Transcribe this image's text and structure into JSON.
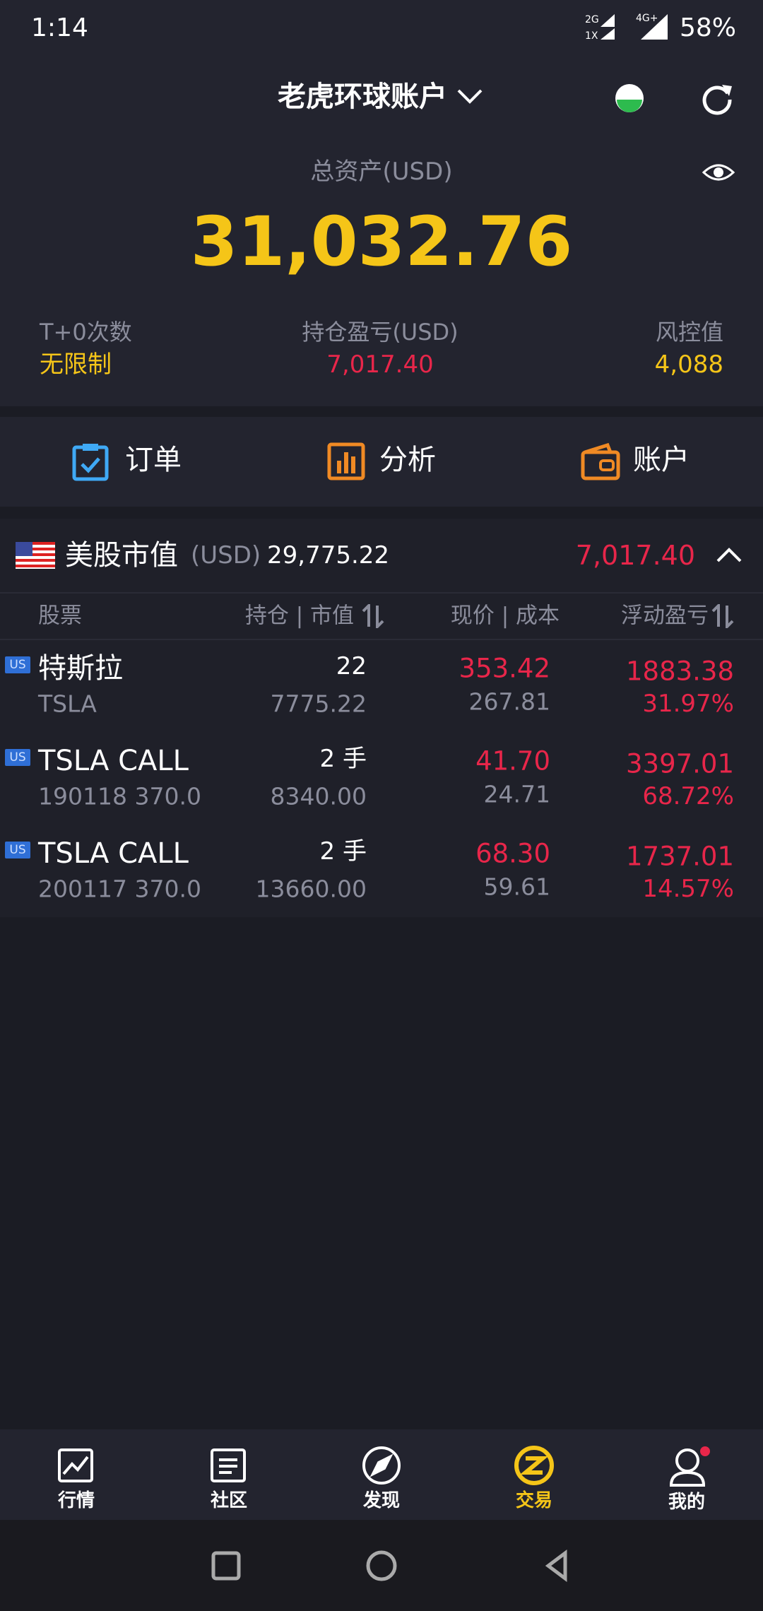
{
  "status": {
    "time": "1:14",
    "net1": "2G",
    "net2": "1X",
    "net3": "4G+",
    "battery": "58%"
  },
  "header": {
    "title": "老虎环球账户"
  },
  "summary": {
    "total_label": "总资产(USD)",
    "total": "31,032.76",
    "stats": [
      {
        "label": "T+0次数",
        "value": "无限制"
      },
      {
        "label": "持仓盈亏(USD)",
        "value": "7,017.40"
      },
      {
        "label": "风控值",
        "value": "4,088"
      }
    ]
  },
  "tabs": [
    "订单",
    "分析",
    "账户"
  ],
  "market": {
    "title": "美股市值",
    "currency": "(USD)",
    "value": "29,775.22",
    "pnl": "7,017.40"
  },
  "table": {
    "columns": [
      "股票",
      "持仓 | 市值",
      "现价 | 成本",
      "浮动盈亏"
    ],
    "rows": [
      {
        "badge": "US",
        "name": "特斯拉",
        "code": "TSLA",
        "qty": "22",
        "mv": "7775.22",
        "price": "353.42",
        "cost": "267.81",
        "pnl": "1883.38",
        "pct": "31.97%"
      },
      {
        "badge": "US",
        "name": "TSLA CALL",
        "code": "190118 370.0",
        "qty": "2 手",
        "mv": "8340.00",
        "price": "41.70",
        "cost": "24.71",
        "pnl": "3397.01",
        "pct": "68.72%"
      },
      {
        "badge": "US",
        "name": "TSLA CALL",
        "code": "200117 370.0",
        "qty": "2 手",
        "mv": "13660.00",
        "price": "68.30",
        "cost": "59.61",
        "pnl": "1737.01",
        "pct": "14.57%"
      }
    ]
  },
  "nav": [
    "行情",
    "社区",
    "发现",
    "交易",
    "我的"
  ]
}
